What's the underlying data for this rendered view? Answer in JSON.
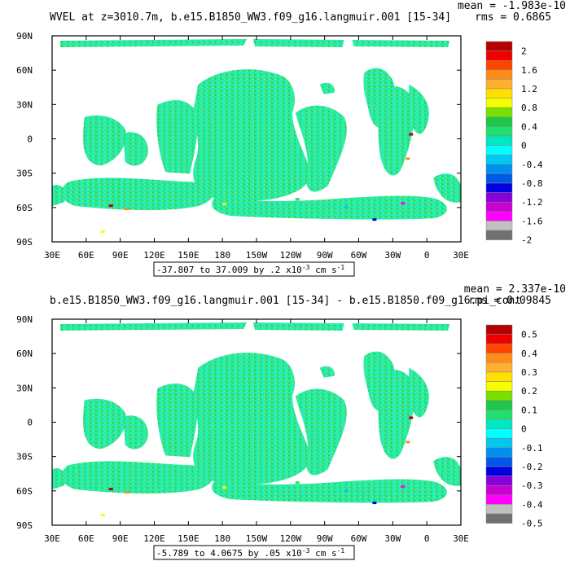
{
  "panels": [
    {
      "title": "WVEL at z=3010.7m, b.e15.B1850_WW3.f09_g16.langmuir.001 [15-34]",
      "mean_text": "mean = -1.983e-10",
      "rms_text": "rms = 0.6865",
      "range_text": "-37.807 to 37.009 by .2 x10",
      "units_text": "cm s",
      "legend_labels": [
        "2",
        "1.6",
        "1.2",
        "0.8",
        "0.4",
        "0",
        "-0.4",
        "-0.8",
        "-1.2",
        "-1.6",
        "-2"
      ]
    },
    {
      "title": "b.e15.B1850_WW3.f09_g16.langmuir.001 [15-34] - b.e15.B1850.f09_g16.pi_cont",
      "mean_text": "mean = 2.337e-10",
      "rms_text": "rms = 0.09845",
      "range_text": "-5.789 to 4.0675 by .05 x10",
      "units_text": "cm s",
      "legend_labels": [
        "0.5",
        "0.4",
        "0.3",
        "0.2",
        "0.1",
        "0",
        "-0.1",
        "-0.2",
        "-0.3",
        "-0.4",
        "-0.5"
      ]
    }
  ],
  "exponent_text": "-3",
  "units_exponent": "-1",
  "colorbar_colors": [
    "#b40000",
    "#ee0000",
    "#ff4400",
    "#ff8c1a",
    "#ffb030",
    "#ffe000",
    "#f5ff00",
    "#7ae000",
    "#1fc64a",
    "#20e070",
    "#00e8c0",
    "#00ffff",
    "#00c8f0",
    "#0090f0",
    "#0058e8",
    "#0000e0",
    "#8a00d8",
    "#c800d0",
    "#ff00ff",
    "#c0c0c0",
    "#707070"
  ],
  "chart_data": [
    {
      "type": "heatmap",
      "title": "WVEL at z=3010.7m, b.e15.B1850_WW3.f09_g16.langmuir.001 [15-34]",
      "x_ticks": [
        "30E",
        "60E",
        "90E",
        "120E",
        "150E",
        "180",
        "150W",
        "120W",
        "90W",
        "60W",
        "30W",
        "0",
        "30E"
      ],
      "y_ticks": [
        "90N",
        "60N",
        "30N",
        "0",
        "30S",
        "60S",
        "90S"
      ],
      "xlim": [
        30,
        390
      ],
      "ylim": [
        -90,
        90
      ],
      "colorbar_levels": [
        2,
        1.6,
        1.2,
        0.8,
        0.4,
        0,
        -0.4,
        -0.8,
        -1.2,
        -1.6,
        -2
      ],
      "mean": -1.983e-10,
      "rms": 0.6865,
      "data_min": -37.807,
      "data_max": 37.009,
      "contour_interval": 0.2,
      "scale_exponent": -3,
      "units": "cm s-1"
    },
    {
      "type": "heatmap",
      "title": "b.e15.B1850_WW3.f09_g16.langmuir.001 [15-34] - b.e15.B1850.f09_g16.pi_cont",
      "x_ticks": [
        "30E",
        "60E",
        "90E",
        "120E",
        "150E",
        "180",
        "150W",
        "120W",
        "90W",
        "60W",
        "30W",
        "0",
        "30E"
      ],
      "y_ticks": [
        "90N",
        "60N",
        "30N",
        "0",
        "30S",
        "60S",
        "90S"
      ],
      "xlim": [
        30,
        390
      ],
      "ylim": [
        -90,
        90
      ],
      "colorbar_levels": [
        0.5,
        0.4,
        0.3,
        0.2,
        0.1,
        0,
        -0.1,
        -0.2,
        -0.3,
        -0.4,
        -0.5
      ],
      "mean": 2.337e-10,
      "rms": 0.09845,
      "data_min": -5.789,
      "data_max": 4.0675,
      "contour_interval": 0.05,
      "scale_exponent": -3,
      "units": "cm s-1"
    }
  ]
}
